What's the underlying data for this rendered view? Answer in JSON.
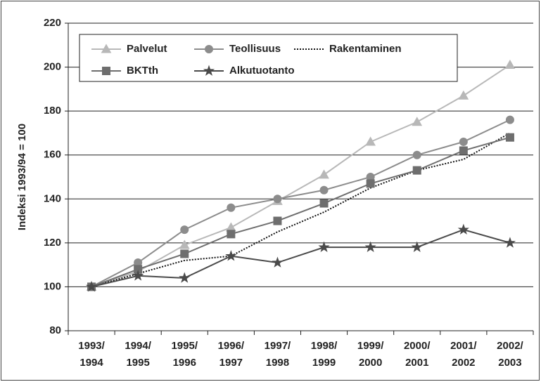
{
  "chart_data": {
    "type": "line",
    "ylabel": "Indeksi 1993/94 = 100",
    "categories": [
      "1993/1994",
      "1994/1995",
      "1995/1996",
      "1996/1997",
      "1997/1998",
      "1998/1999",
      "1999/2000",
      "2000/2001",
      "2001/2002",
      "2002/2003"
    ],
    "series": [
      {
        "name": "Palvelut",
        "color": "#b8b8b8",
        "marker": "triangle",
        "values": [
          100,
          107,
          119,
          127,
          139,
          151,
          166,
          175,
          187,
          201
        ]
      },
      {
        "name": "Teollisuus",
        "color": "#8c8c8c",
        "marker": "circle",
        "values": [
          100,
          111,
          126,
          136,
          140,
          144,
          150,
          160,
          166,
          176
        ]
      },
      {
        "name": "Rakentaminen",
        "color": "#111111",
        "linestyle": "dotted",
        "values": [
          100,
          106,
          112,
          114,
          125,
          134,
          145,
          153,
          158,
          170
        ]
      },
      {
        "name": "BKTth",
        "color": "#6e6e6e",
        "marker": "square",
        "values": [
          100,
          108,
          115,
          124,
          130,
          138,
          147,
          153,
          162,
          168
        ]
      },
      {
        "name": "Alkutuotanto",
        "color": "#4a4a4a",
        "marker": "star",
        "values": [
          100,
          105,
          104,
          114,
          111,
          118,
          118,
          118,
          126,
          120
        ]
      }
    ],
    "ylim": [
      80,
      220
    ],
    "yticks": [
      80,
      100,
      120,
      140,
      160,
      180,
      200,
      220
    ],
    "grid": true
  }
}
